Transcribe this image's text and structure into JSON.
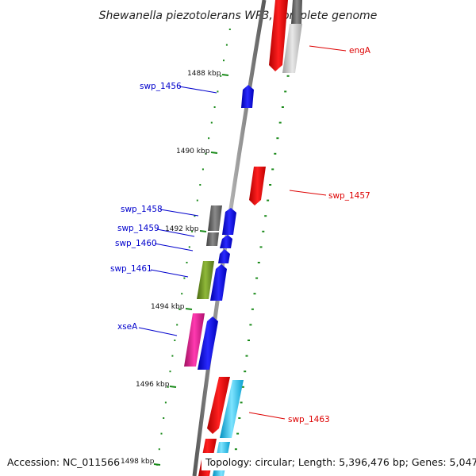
{
  "title": "Shewanella piezotolerans WP3, complete genome",
  "footer": {
    "accession": "Accession: NC_011566",
    "topology": "Topology: circular; Length: 5,396,476 bp; Genes: 5,047"
  },
  "scale_labels": [
    "1488 kbp",
    "1490 kbp",
    "1492 kbp",
    "1494 kbp",
    "1496 kbp",
    "1498 kbp"
  ],
  "gene_labels": {
    "left": [
      "swp_1456",
      "swp_1458",
      "swp_1459",
      "swp_1460",
      "swp_1461",
      "xseA"
    ],
    "right": [
      "engA",
      "swp_1457",
      "swp_1463"
    ]
  },
  "colors": {
    "strand_forward_label": "#0000cc",
    "strand_reverse_label": "#dd0000",
    "tick": "#1a8a1a",
    "backbone": "#808080",
    "blue_gene": "#0000ee",
    "red_gene": "#ee0000",
    "gray_gene": "#606060",
    "olive_gene": "#6b8e23",
    "magenta_gene": "#e0188c",
    "cyan_gene": "#20c8f0",
    "light_gray_gene": "#c0c0c0"
  }
}
